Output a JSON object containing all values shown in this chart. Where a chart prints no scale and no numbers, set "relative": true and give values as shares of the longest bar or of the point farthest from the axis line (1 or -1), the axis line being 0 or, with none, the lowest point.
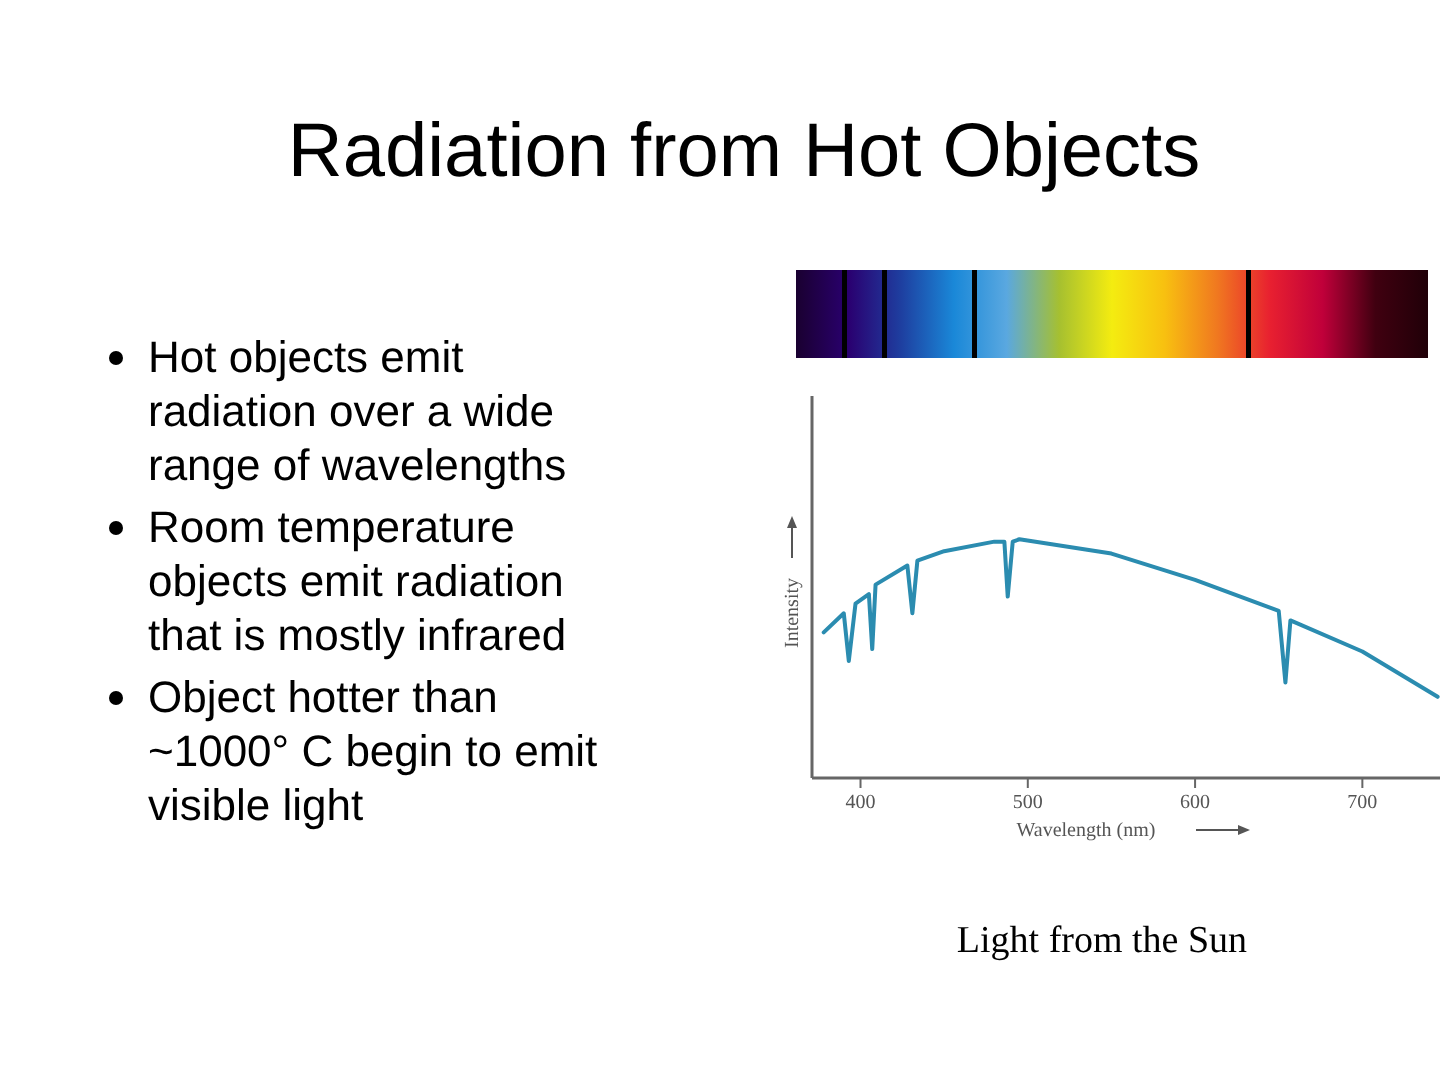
{
  "chart_data": {
    "type": "line",
    "title": "Radiation from Hot Objects",
    "xlabel": "Wavelength (nm)",
    "ylabel": "Intensity",
    "relative": true,
    "x": [
      378,
      390,
      393,
      397,
      405,
      407,
      409,
      428,
      431,
      434,
      450,
      480,
      486,
      488,
      491,
      495,
      550,
      600,
      650,
      654,
      657,
      700,
      745
    ],
    "series": [
      {
        "color": "#2b8cb0",
        "values": [
          0.61,
          0.69,
          0.49,
          0.73,
          0.77,
          0.54,
          0.81,
          0.89,
          0.69,
          0.91,
          0.95,
          0.99,
          0.99,
          0.76,
          0.99,
          1.0,
          0.94,
          0.83,
          0.7,
          0.4,
          0.66,
          0.53,
          0.34
        ]
      }
    ],
    "xlim": [
      371,
      750
    ],
    "xticks": [
      400,
      500,
      600,
      700
    ],
    "annotations": [
      "Hot objects emit radiation over a wide range of wavelengths",
      "Room temperature objects emit radiation that is mostly infrared",
      "Object hotter than ~1000° C begin to emit visible light",
      "Light from the Sun"
    ]
  }
}
